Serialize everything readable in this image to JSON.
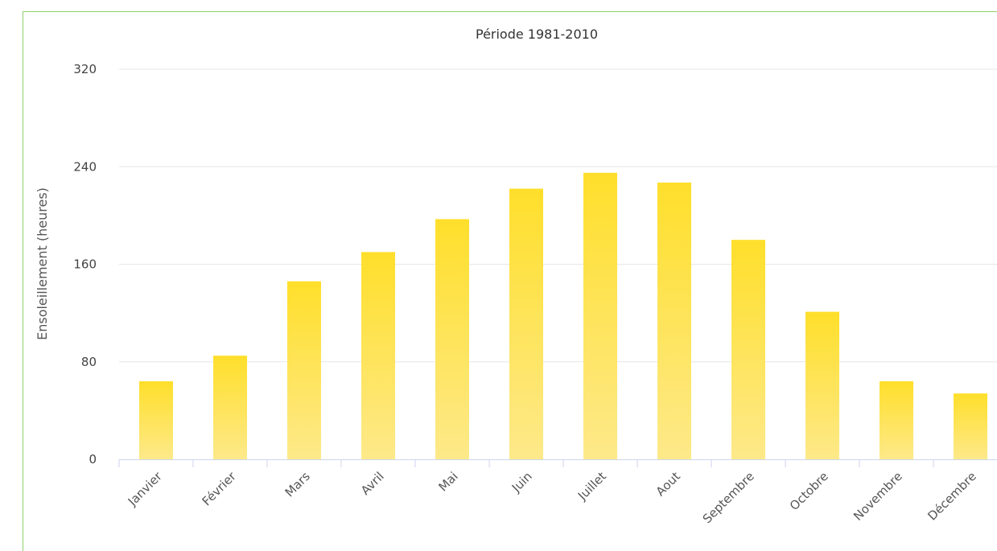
{
  "chart_data": {
    "type": "bar",
    "title": "Période 1981-2010",
    "xlabel": "",
    "ylabel": "Ensoleillement (heures)",
    "ylim": [
      0,
      320
    ],
    "yticks": [
      0,
      80,
      160,
      240,
      320
    ],
    "grid": true,
    "categories": [
      "Janvier",
      "Février",
      "Mars",
      "Avril",
      "Mai",
      "Juin",
      "Juillet",
      "Aout",
      "Septembre",
      "Octobre",
      "Novembre",
      "Décembre"
    ],
    "values": [
      64,
      85,
      146,
      170,
      197,
      222,
      235,
      227,
      180,
      121,
      64,
      54
    ],
    "colors": {
      "bar_top": "#ffdf2b",
      "bar_bottom": "#fde98a",
      "grid": "#e6e6e6",
      "axis": "#ccd6eb",
      "frame": "#8fd06a"
    }
  }
}
